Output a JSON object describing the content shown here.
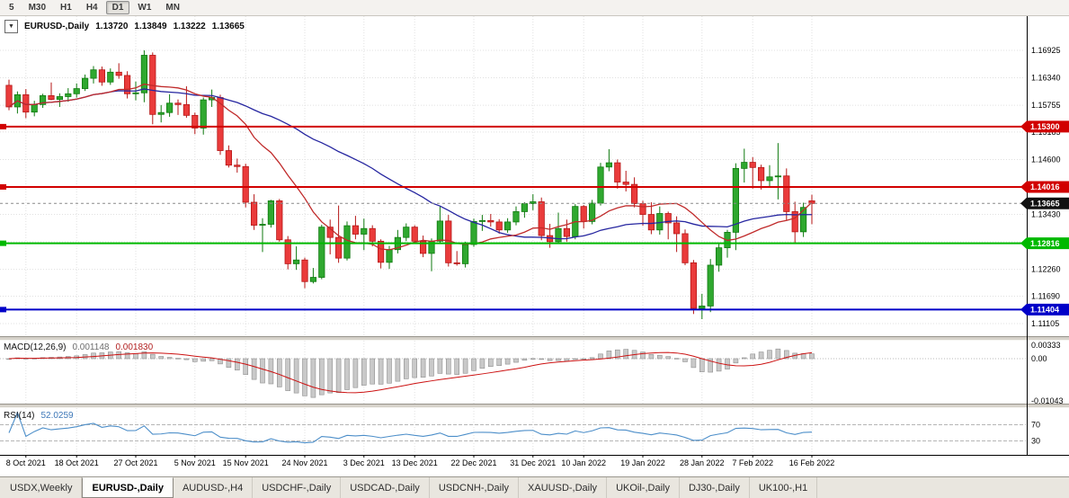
{
  "window": {
    "toolbar_timeframes": [
      "5",
      "M30",
      "H1",
      "H4",
      "D1",
      "W1",
      "MN"
    ],
    "active_timeframe": "D1"
  },
  "header": {
    "symbol": "EURUSD-,Daily",
    "open": "1.13720",
    "high": "1.13849",
    "low": "1.13222",
    "close": "1.13665",
    "dropdown_icon": "▼"
  },
  "chart_data": {
    "type": "candlestick",
    "title": "EURUSD-,Daily",
    "x_labels": [
      "8 Oct 2021",
      "18 Oct 2021",
      "27 Oct 2021",
      "5 Nov 2021",
      "15 Nov 2021",
      "24 Nov 2021",
      "3 Dec 2021",
      "13 Dec 2021",
      "22 Dec 2021",
      "31 Dec 2021",
      "10 Jan 2022",
      "19 Jan 2022",
      "28 Jan 2022",
      "7 Feb 2022",
      "16 Feb 2022"
    ],
    "x_label_indices": [
      2,
      8,
      15,
      22,
      28,
      35,
      42,
      48,
      55,
      62,
      68,
      75,
      82,
      88,
      95
    ],
    "y_axis_values": [
      1.16925,
      1.1634,
      1.15755,
      1.15185,
      1.146,
      1.14015,
      1.1343,
      1.12845,
      1.1226,
      1.1169,
      1.11105
    ],
    "candles_ohlc": [
      [
        1.1618,
        1.163,
        1.1565,
        1.1572
      ],
      [
        1.1572,
        1.1605,
        1.1558,
        1.1598
      ],
      [
        1.1598,
        1.161,
        1.1548,
        1.1561
      ],
      [
        1.1561,
        1.1585,
        1.1552,
        1.1577
      ],
      [
        1.1577,
        1.16,
        1.157,
        1.1596
      ],
      [
        1.1596,
        1.1624,
        1.1586,
        1.1588
      ],
      [
        1.1588,
        1.1601,
        1.1572,
        1.1594
      ],
      [
        1.1594,
        1.1612,
        1.1583,
        1.16
      ],
      [
        1.16,
        1.1622,
        1.1592,
        1.1611
      ],
      [
        1.1611,
        1.1641,
        1.1606,
        1.1633
      ],
      [
        1.1633,
        1.1659,
        1.1622,
        1.1651
      ],
      [
        1.1651,
        1.1658,
        1.1617,
        1.1625
      ],
      [
        1.1625,
        1.1654,
        1.1619,
        1.1646
      ],
      [
        1.1646,
        1.1665,
        1.1632,
        1.1639
      ],
      [
        1.1639,
        1.1648,
        1.159,
        1.16
      ],
      [
        1.16,
        1.1626,
        1.1586,
        1.1602
      ],
      [
        1.1602,
        1.16925,
        1.1582,
        1.1682
      ],
      [
        1.1682,
        1.1688,
        1.1535,
        1.1556
      ],
      [
        1.1556,
        1.1576,
        1.1539,
        1.156
      ],
      [
        1.156,
        1.1599,
        1.1551,
        1.158
      ],
      [
        1.158,
        1.1588,
        1.1555,
        1.1577
      ],
      [
        1.1577,
        1.1616,
        1.1549,
        1.1554
      ],
      [
        1.1554,
        1.156,
        1.1514,
        1.1527
      ],
      [
        1.1527,
        1.1592,
        1.1513,
        1.1587
      ],
      [
        1.1587,
        1.1609,
        1.1572,
        1.1592
      ],
      [
        1.1592,
        1.1598,
        1.147,
        1.1479
      ],
      [
        1.1479,
        1.149,
        1.1443,
        1.1448
      ],
      [
        1.1448,
        1.1462,
        1.1432,
        1.1445
      ],
      [
        1.1445,
        1.1451,
        1.1358,
        1.1369
      ],
      [
        1.1369,
        1.1386,
        1.131,
        1.132
      ],
      [
        1.132,
        1.1335,
        1.1263,
        1.1322
      ],
      [
        1.1322,
        1.1374,
        1.1315,
        1.1372
      ],
      [
        1.1372,
        1.1376,
        1.1285,
        1.1289
      ],
      [
        1.1289,
        1.1297,
        1.1226,
        1.1238
      ],
      [
        1.1238,
        1.1275,
        1.1225,
        1.1246
      ],
      [
        1.1246,
        1.1251,
        1.1186,
        1.12
      ],
      [
        1.12,
        1.1229,
        1.1196,
        1.1209
      ],
      [
        1.1209,
        1.1321,
        1.1205,
        1.1316
      ],
      [
        1.1316,
        1.1332,
        1.1258,
        1.1294
      ],
      [
        1.1294,
        1.1362,
        1.124,
        1.125
      ],
      [
        1.125,
        1.1328,
        1.1245,
        1.1319
      ],
      [
        1.1319,
        1.134,
        1.129,
        1.1301
      ],
      [
        1.1301,
        1.1334,
        1.1267,
        1.1313
      ],
      [
        1.1313,
        1.132,
        1.1275,
        1.1286
      ],
      [
        1.1286,
        1.129,
        1.1228,
        1.1241
      ],
      [
        1.1241,
        1.1276,
        1.1227,
        1.1268
      ],
      [
        1.1268,
        1.131,
        1.126,
        1.1294
      ],
      [
        1.1294,
        1.1324,
        1.1286,
        1.1316
      ],
      [
        1.1316,
        1.132,
        1.1281,
        1.1286
      ],
      [
        1.1286,
        1.1298,
        1.1252,
        1.126
      ],
      [
        1.126,
        1.1292,
        1.1222,
        1.1286
      ],
      [
        1.1286,
        1.136,
        1.128,
        1.1329
      ],
      [
        1.1329,
        1.1342,
        1.1232,
        1.124
      ],
      [
        1.124,
        1.1265,
        1.1234,
        1.1238
      ],
      [
        1.1238,
        1.1285,
        1.123,
        1.1279
      ],
      [
        1.1279,
        1.1334,
        1.1274,
        1.1328
      ],
      [
        1.1328,
        1.1342,
        1.1308,
        1.133
      ],
      [
        1.133,
        1.1344,
        1.1317,
        1.1327
      ],
      [
        1.1327,
        1.1333,
        1.1302,
        1.131
      ],
      [
        1.131,
        1.1335,
        1.1304,
        1.1327
      ],
      [
        1.1327,
        1.136,
        1.132,
        1.1349
      ],
      [
        1.1349,
        1.1369,
        1.1336,
        1.1366
      ],
      [
        1.1366,
        1.1386,
        1.1352,
        1.137
      ],
      [
        1.137,
        1.1379,
        1.1288,
        1.1298
      ],
      [
        1.1298,
        1.1323,
        1.1272,
        1.1285
      ],
      [
        1.1285,
        1.1347,
        1.128,
        1.1313
      ],
      [
        1.1313,
        1.1332,
        1.1285,
        1.1296
      ],
      [
        1.1296,
        1.1365,
        1.129,
        1.136
      ],
      [
        1.136,
        1.1363,
        1.1313,
        1.1328
      ],
      [
        1.1328,
        1.1374,
        1.1322,
        1.1367
      ],
      [
        1.1367,
        1.1453,
        1.1362,
        1.1444
      ],
      [
        1.1444,
        1.1482,
        1.1435,
        1.1453
      ],
      [
        1.1453,
        1.146,
        1.1398,
        1.1412
      ],
      [
        1.1412,
        1.1436,
        1.1392,
        1.1407
      ],
      [
        1.1407,
        1.1422,
        1.1358,
        1.1366
      ],
      [
        1.1366,
        1.1372,
        1.1319,
        1.1343
      ],
      [
        1.1343,
        1.1369,
        1.1301,
        1.131
      ],
      [
        1.131,
        1.136,
        1.13,
        1.1345
      ],
      [
        1.1345,
        1.1349,
        1.129,
        1.1325
      ],
      [
        1.1325,
        1.1339,
        1.1263,
        1.1302
      ],
      [
        1.1302,
        1.1311,
        1.1235,
        1.124
      ],
      [
        1.124,
        1.1246,
        1.1131,
        1.1143
      ],
      [
        1.1143,
        1.1174,
        1.112,
        1.1148
      ],
      [
        1.1148,
        1.1248,
        1.1135,
        1.1235
      ],
      [
        1.1235,
        1.128,
        1.1221,
        1.1272
      ],
      [
        1.1272,
        1.131,
        1.1251,
        1.1305
      ],
      [
        1.1305,
        1.1452,
        1.1267,
        1.1441
      ],
      [
        1.1441,
        1.1483,
        1.1411,
        1.1454
      ],
      [
        1.1454,
        1.1465,
        1.1398,
        1.1443
      ],
      [
        1.1443,
        1.1449,
        1.1396,
        1.1415
      ],
      [
        1.1415,
        1.1448,
        1.1403,
        1.1423
      ],
      [
        1.1423,
        1.1495,
        1.1375,
        1.1425
      ],
      [
        1.1425,
        1.1441,
        1.133,
        1.1349
      ],
      [
        1.1349,
        1.137,
        1.128,
        1.1306
      ],
      [
        1.1306,
        1.1368,
        1.1295,
        1.1358
      ],
      [
        1.1372,
        1.13849,
        1.13222,
        1.13665
      ]
    ],
    "candle_colors": {
      "up": "#2FA82F",
      "up_border": "#0F7A0F",
      "down": "#EA3B3B",
      "down_border": "#B51616"
    },
    "horizontal_lines": [
      {
        "price": 1.153,
        "label": "1.15300",
        "color": "#D10000"
      },
      {
        "price": 1.14016,
        "label": "1.14016",
        "color": "#D10000"
      },
      {
        "price": 1.12816,
        "label": "1.12816",
        "color": "#00B900"
      },
      {
        "price": 1.11404,
        "label": "1.11404",
        "color": "#0000C8"
      }
    ],
    "current_price": {
      "value": 1.13665,
      "label": "1.13665",
      "badge_color": "#111111"
    },
    "moving_averages": [
      {
        "period": 34,
        "color": "#2626A0"
      },
      {
        "period": 13,
        "color": "#C02A2A"
      }
    ],
    "indicators": {
      "macd": {
        "label": "MACD(12,26,9)",
        "value_main": "0.001148",
        "value_signal": "0.001830",
        "fast": 12,
        "slow": 26,
        "signal": 9,
        "axis_labels": [
          "0.00333",
          "0.00",
          "-0.01043"
        ],
        "axis_max": 0.00333,
        "axis_min": -0.01043,
        "histogram_color": "#C9C9C9",
        "signal_color": "#CC1111"
      },
      "rsi": {
        "label": "RSI(14)",
        "value": "52.0259",
        "period": 14,
        "levels": [
          70,
          30
        ],
        "line_color": "#4C8EC9"
      }
    }
  },
  "tabs": {
    "items": [
      "USDX,Weekly",
      "EURUSD-,Daily",
      "AUDUSD-,H4",
      "USDCHF-,Daily",
      "USDCAD-,Daily",
      "USDCNH-,Daily",
      "XAUUSD-,Daily",
      "UKOil-,Daily",
      "DJ30-,Daily",
      "UK100-,H1"
    ],
    "active": "EURUSD-,Daily"
  }
}
